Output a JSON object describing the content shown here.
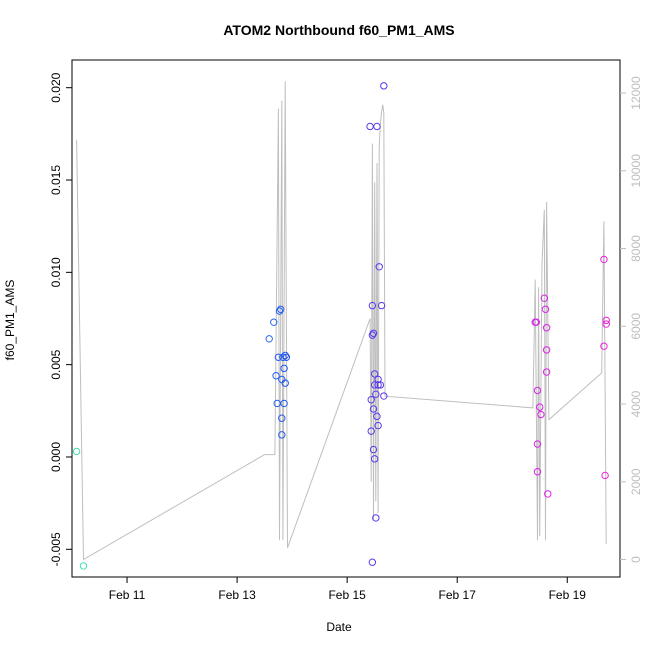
{
  "chart_data": {
    "type": "scatter",
    "title": "ATOM2 Northbound f60_PM1_AMS",
    "xlabel": "Date",
    "ylabel": "f60_PM1_AMS",
    "x_type": "date",
    "xlim": [
      "2021-02-10 00:00",
      "2021-02-19 23:00"
    ],
    "x_ticks": [
      {
        "value": "2021-02-11",
        "label": "Feb 11"
      },
      {
        "value": "2021-02-13",
        "label": "Feb 13"
      },
      {
        "value": "2021-02-15",
        "label": "Feb 15"
      },
      {
        "value": "2021-02-17",
        "label": "Feb 17"
      },
      {
        "value": "2021-02-19",
        "label": "Feb 19"
      }
    ],
    "ylim": [
      -0.0065,
      0.0215
    ],
    "y_ticks": [
      {
        "value": -0.005,
        "label": "-0.005"
      },
      {
        "value": 0.0,
        "label": "0.000"
      },
      {
        "value": 0.005,
        "label": "0.005"
      },
      {
        "value": 0.01,
        "label": "0.010"
      },
      {
        "value": 0.015,
        "label": "0.015"
      },
      {
        "value": 0.02,
        "label": "0.020"
      }
    ],
    "y2lim": [
      -450,
      12850
    ],
    "y2_ticks": [
      {
        "value": 0,
        "label": "0"
      },
      {
        "value": 2000,
        "label": "2000"
      },
      {
        "value": 4000,
        "label": "4000"
      },
      {
        "value": 6000,
        "label": "6000"
      },
      {
        "value": 8000,
        "label": "8000"
      },
      {
        "value": 10000,
        "label": "10000"
      },
      {
        "value": 12000,
        "label": "12000"
      }
    ],
    "grid": false,
    "colors": {
      "line_series": "#bebebe",
      "axis": "#000000",
      "palette": [
        "#40e0b0",
        "#33c8f0",
        "#2255ee",
        "#6633ee",
        "#cc22ee",
        "#ee22dd"
      ]
    },
    "series": [
      {
        "kind": "points",
        "axis": "left",
        "points": [
          {
            "x": "2021-02-10 02:00",
            "y": 0.0003
          },
          {
            "x": "2021-02-10 05:00",
            "y": -0.0059
          },
          {
            "x": "2021-02-13 14:00",
            "y": 0.0064
          },
          {
            "x": "2021-02-13 16:00",
            "y": 0.0073
          },
          {
            "x": "2021-02-13 17:00",
            "y": 0.0044
          },
          {
            "x": "2021-02-13 17:30",
            "y": 0.0029
          },
          {
            "x": "2021-02-13 18:00",
            "y": 0.0054
          },
          {
            "x": "2021-02-13 18:30",
            "y": 0.0079
          },
          {
            "x": "2021-02-13 19:00",
            "y": 0.008
          },
          {
            "x": "2021-02-13 19:30",
            "y": 0.0042
          },
          {
            "x": "2021-02-13 19:30",
            "y": 0.0021
          },
          {
            "x": "2021-02-13 19:30",
            "y": 0.0012
          },
          {
            "x": "2021-02-13 20:00",
            "y": 0.0054
          },
          {
            "x": "2021-02-13 20:30",
            "y": 0.0048
          },
          {
            "x": "2021-02-13 20:30",
            "y": 0.0029
          },
          {
            "x": "2021-02-13 21:00",
            "y": 0.0055
          },
          {
            "x": "2021-02-13 21:00",
            "y": 0.004
          },
          {
            "x": "2021-02-13 21:30",
            "y": 0.0054
          },
          {
            "x": "2021-02-15 10:00",
            "y": 0.0179
          },
          {
            "x": "2021-02-15 10:30",
            "y": 0.0014
          },
          {
            "x": "2021-02-15 10:30",
            "y": 0.0031
          },
          {
            "x": "2021-02-15 11:00",
            "y": 0.0066
          },
          {
            "x": "2021-02-15 11:00",
            "y": 0.0082
          },
          {
            "x": "2021-02-15 11:00",
            "y": -0.0057
          },
          {
            "x": "2021-02-15 11:30",
            "y": 0.0067
          },
          {
            "x": "2021-02-15 11:30",
            "y": 0.0026
          },
          {
            "x": "2021-02-15 11:30",
            "y": 0.0004
          },
          {
            "x": "2021-02-15 12:00",
            "y": 0.0045
          },
          {
            "x": "2021-02-15 12:00",
            "y": 0.0039
          },
          {
            "x": "2021-02-15 12:00",
            "y": -0.0001
          },
          {
            "x": "2021-02-15 12:30",
            "y": 0.0034
          },
          {
            "x": "2021-02-15 12:30",
            "y": -0.0033
          },
          {
            "x": "2021-02-15 13:00",
            "y": 0.0179
          },
          {
            "x": "2021-02-15 13:00",
            "y": 0.0022
          },
          {
            "x": "2021-02-15 13:30",
            "y": 0.0042
          },
          {
            "x": "2021-02-15 13:30",
            "y": 0.0039
          },
          {
            "x": "2021-02-15 13:30",
            "y": 0.0017
          },
          {
            "x": "2021-02-15 14:00",
            "y": 0.0103
          },
          {
            "x": "2021-02-15 14:30",
            "y": 0.0039
          },
          {
            "x": "2021-02-15 15:00",
            "y": 0.0082
          },
          {
            "x": "2021-02-15 16:00",
            "y": 0.0201
          },
          {
            "x": "2021-02-15 16:00",
            "y": 0.0033
          },
          {
            "x": "2021-02-18 10:00",
            "y": 0.0073
          },
          {
            "x": "2021-02-18 10:30",
            "y": 0.0073
          },
          {
            "x": "2021-02-18 11:00",
            "y": 0.0036
          },
          {
            "x": "2021-02-18 11:00",
            "y": 0.0007
          },
          {
            "x": "2021-02-18 11:00",
            "y": -0.0008
          },
          {
            "x": "2021-02-18 12:00",
            "y": 0.0027
          },
          {
            "x": "2021-02-18 12:30",
            "y": 0.0023
          },
          {
            "x": "2021-02-18 14:00",
            "y": 0.0086
          },
          {
            "x": "2021-02-18 14:30",
            "y": 0.008
          },
          {
            "x": "2021-02-18 15:00",
            "y": 0.007
          },
          {
            "x": "2021-02-18 15:00",
            "y": 0.0058
          },
          {
            "x": "2021-02-18 15:00",
            "y": 0.0046
          },
          {
            "x": "2021-02-18 15:30",
            "y": -0.002
          },
          {
            "x": "2021-02-19 16:00",
            "y": 0.0107
          },
          {
            "x": "2021-02-19 16:00",
            "y": 0.006
          },
          {
            "x": "2021-02-19 16:30",
            "y": -0.001
          },
          {
            "x": "2021-02-19 17:00",
            "y": 0.0074
          },
          {
            "x": "2021-02-19 17:00",
            "y": 0.0072
          }
        ]
      },
      {
        "kind": "line",
        "axis": "right",
        "points": [
          {
            "x": "2021-02-10 02:00",
            "y": 10800
          },
          {
            "x": "2021-02-10 05:00",
            "y": 0
          },
          {
            "x": "2021-02-13 12:00",
            "y": 2700
          },
          {
            "x": "2021-02-13 16:30",
            "y": 2700
          },
          {
            "x": "2021-02-13 18:00",
            "y": 11600
          },
          {
            "x": "2021-02-13 18:30",
            "y": 500
          },
          {
            "x": "2021-02-13 19:30",
            "y": 11800
          },
          {
            "x": "2021-02-13 20:00",
            "y": 500
          },
          {
            "x": "2021-02-13 21:00",
            "y": 12300
          },
          {
            "x": "2021-02-13 22:00",
            "y": 300
          },
          {
            "x": "2021-02-15 10:00",
            "y": 6200
          },
          {
            "x": "2021-02-15 10:30",
            "y": 2000
          },
          {
            "x": "2021-02-15 11:00",
            "y": 10700
          },
          {
            "x": "2021-02-15 11:30",
            "y": 1000
          },
          {
            "x": "2021-02-15 12:00",
            "y": 9700
          },
          {
            "x": "2021-02-15 12:30",
            "y": 1500
          },
          {
            "x": "2021-02-15 13:00",
            "y": 10200
          },
          {
            "x": "2021-02-15 13:30",
            "y": 1200
          },
          {
            "x": "2021-02-15 14:00",
            "y": 10600
          },
          {
            "x": "2021-02-15 14:30",
            "y": 11200
          },
          {
            "x": "2021-02-15 15:00",
            "y": 11500
          },
          {
            "x": "2021-02-15 15:30",
            "y": 11700
          },
          {
            "x": "2021-02-15 16:00",
            "y": 11500
          },
          {
            "x": "2021-02-15 16:30",
            "y": 4200
          },
          {
            "x": "2021-02-18 09:00",
            "y": 3900
          },
          {
            "x": "2021-02-18 10:00",
            "y": 7200
          },
          {
            "x": "2021-02-18 11:00",
            "y": 500
          },
          {
            "x": "2021-02-18 11:30",
            "y": 7000
          },
          {
            "x": "2021-02-18 12:00",
            "y": 600
          },
          {
            "x": "2021-02-18 13:00",
            "y": 7600
          },
          {
            "x": "2021-02-18 14:00",
            "y": 9000
          },
          {
            "x": "2021-02-18 14:30",
            "y": 500
          },
          {
            "x": "2021-02-18 15:00",
            "y": 9200
          },
          {
            "x": "2021-02-18 16:00",
            "y": 3600
          },
          {
            "x": "2021-02-19 15:00",
            "y": 4800
          },
          {
            "x": "2021-02-19 16:00",
            "y": 8700
          },
          {
            "x": "2021-02-19 17:00",
            "y": 400
          }
        ]
      }
    ]
  }
}
